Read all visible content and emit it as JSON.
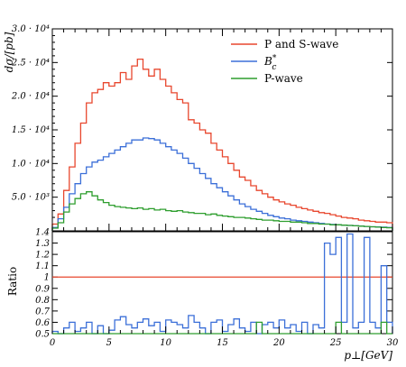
{
  "chart_data": [
    {
      "type": "line",
      "panel": "main",
      "ylabel": "dσ/[pb]",
      "xlim": [
        0,
        30
      ],
      "ylim": [
        0,
        30000
      ],
      "yticks": [
        {
          "value": 5000,
          "label": "5.0 · 10³"
        },
        {
          "value": 10000,
          "label": "1.0 · 10⁴"
        },
        {
          "value": 15000,
          "label": "1.5 · 10⁴"
        },
        {
          "value": 20000,
          "label": "2.0 · 10⁴"
        },
        {
          "value": 25000,
          "label": "2.5 · 10⁴"
        },
        {
          "value": 30000,
          "label": "3.0 · 10⁴"
        }
      ],
      "x": [
        0,
        0.5,
        1,
        1.5,
        2,
        2.5,
        3,
        3.5,
        4,
        4.5,
        5,
        5.5,
        6,
        6.5,
        7,
        7.5,
        8,
        8.5,
        9,
        9.5,
        10,
        10.5,
        11,
        11.5,
        12,
        12.5,
        13,
        13.5,
        14,
        14.5,
        15,
        15.5,
        16,
        16.5,
        17,
        17.5,
        18,
        18.5,
        19,
        19.5,
        20,
        20.5,
        21,
        21.5,
        22,
        22.5,
        23,
        23.5,
        24,
        24.5,
        25,
        25.5,
        26,
        26.5,
        27,
        27.5,
        28,
        28.5,
        29,
        29.5
      ],
      "series": [
        {
          "name": "P and S-wave",
          "color": "#e8472e",
          "values": [
            1000,
            2500,
            6000,
            9500,
            13000,
            16000,
            19000,
            20500,
            21000,
            22000,
            21500,
            22000,
            23500,
            22500,
            24500,
            25500,
            24000,
            23000,
            24000,
            22500,
            21500,
            20500,
            19500,
            19000,
            16500,
            16000,
            15000,
            14500,
            13000,
            12000,
            11000,
            10000,
            9000,
            8000,
            7500,
            6700,
            6000,
            5500,
            5000,
            4600,
            4300,
            4000,
            3800,
            3500,
            3300,
            3100,
            2900,
            2700,
            2600,
            2400,
            2200,
            2000,
            1900,
            1800,
            1600,
            1500,
            1400,
            1300,
            1300,
            1200
          ]
        },
        {
          "name": "B_c^*",
          "color": "#3b6fd8",
          "values": [
            500,
            1800,
            3500,
            5500,
            7000,
            8500,
            9500,
            10200,
            10500,
            11000,
            11500,
            12000,
            12500,
            13000,
            13500,
            13500,
            13800,
            13700,
            13500,
            13000,
            12500,
            12000,
            11500,
            10800,
            10000,
            9300,
            8500,
            7800,
            7000,
            6400,
            5800,
            5200,
            4600,
            4000,
            3600,
            3200,
            2900,
            2600,
            2300,
            2100,
            1900,
            1800,
            1600,
            1500,
            1400,
            1300,
            1200,
            1100,
            1000,
            950,
            900,
            850,
            800,
            750,
            700,
            650,
            600,
            580,
            550,
            500
          ]
        },
        {
          "name": "P-wave",
          "color": "#2e9e2e",
          "values": [
            400,
            1200,
            2800,
            4000,
            4800,
            5500,
            5800,
            5200,
            4600,
            4200,
            3800,
            3600,
            3500,
            3400,
            3300,
            3400,
            3200,
            3300,
            3100,
            3200,
            3000,
            2900,
            3000,
            2800,
            2700,
            2600,
            2600,
            2400,
            2500,
            2300,
            2200,
            2100,
            2000,
            2000,
            1900,
            1800,
            1700,
            1600,
            1600,
            1500,
            1400,
            1400,
            1300,
            1300,
            1200,
            1100,
            1100,
            1000,
            1000,
            900,
            900,
            850,
            800,
            750,
            700,
            650,
            600,
            550,
            500,
            450
          ]
        }
      ],
      "legend_placement": "top-right"
    },
    {
      "type": "line",
      "panel": "ratio",
      "ylabel": "Ratio",
      "xlabel": "p⊥[GeV]",
      "xlim": [
        0,
        30
      ],
      "ylim": [
        0.5,
        1.4
      ],
      "xticks": [
        0,
        5,
        10,
        15,
        20,
        25,
        30
      ],
      "yticks": [
        0.5,
        0.6,
        0.7,
        0.8,
        0.9,
        1,
        1.1,
        1.2,
        1.3,
        1.4
      ],
      "reference": 1.0,
      "x": [
        0,
        0.5,
        1,
        1.5,
        2,
        2.5,
        3,
        3.5,
        4,
        4.5,
        5,
        5.5,
        6,
        6.5,
        7,
        7.5,
        8,
        8.5,
        9,
        9.5,
        10,
        10.5,
        11,
        11.5,
        12,
        12.5,
        13,
        13.5,
        14,
        14.5,
        15,
        15.5,
        16,
        16.5,
        17,
        17.5,
        18,
        18.5,
        19,
        19.5,
        20,
        20.5,
        21,
        21.5,
        22,
        22.5,
        23,
        23.5,
        24,
        24.5,
        25,
        25.5,
        26,
        26.5,
        27,
        27.5,
        28,
        28.5,
        29,
        29.5
      ],
      "series": [
        {
          "name": "B_c^*",
          "color": "#3b6fd8",
          "values": [
            0.52,
            0.5,
            0.55,
            0.6,
            0.52,
            0.55,
            0.6,
            0.5,
            0.57,
            0.5,
            0.53,
            0.62,
            0.65,
            0.58,
            0.55,
            0.6,
            0.63,
            0.57,
            0.6,
            0.52,
            0.62,
            0.6,
            0.58,
            0.55,
            0.66,
            0.6,
            0.55,
            0.5,
            0.6,
            0.62,
            0.52,
            0.58,
            0.63,
            0.55,
            0.52,
            0.6,
            0.5,
            0.58,
            0.6,
            0.55,
            0.62,
            0.55,
            0.58,
            0.52,
            0.6,
            0.5,
            0.58,
            0.55,
            1.3,
            1.2,
            1.35,
            0.6,
            1.38,
            0.55,
            0.6,
            1.35,
            0.6,
            0.55,
            1.1,
            0.6
          ]
        },
        {
          "name": "P-wave",
          "color": "#2e9e2e",
          "values": [
            0.5,
            0.5,
            0.5,
            0.5,
            0.5,
            0.5,
            0.5,
            0.5,
            0.5,
            0.5,
            0.5,
            0.5,
            0.5,
            0.5,
            0.5,
            0.5,
            0.5,
            0.5,
            0.5,
            0.5,
            0.5,
            0.5,
            0.5,
            0.5,
            0.5,
            0.5,
            0.5,
            0.5,
            0.5,
            0.5,
            0.5,
            0.5,
            0.5,
            0.5,
            0.5,
            0.5,
            0.6,
            0.5,
            0.5,
            0.5,
            0.5,
            0.5,
            0.5,
            0.5,
            0.5,
            0.5,
            0.5,
            0.5,
            0.5,
            0.5,
            0.6,
            0.5,
            0.5,
            0.5,
            0.5,
            0.5,
            0.5,
            0.5,
            0.6,
            0.5
          ]
        }
      ]
    }
  ],
  "legend": {
    "items": [
      {
        "label": "P and S-wave",
        "color": "#e8472e"
      },
      {
        "label_base": "B",
        "label_sup": "*",
        "label_sub": "c",
        "color": "#3b6fd8"
      },
      {
        "label": "P-wave",
        "color": "#2e9e2e"
      }
    ]
  }
}
